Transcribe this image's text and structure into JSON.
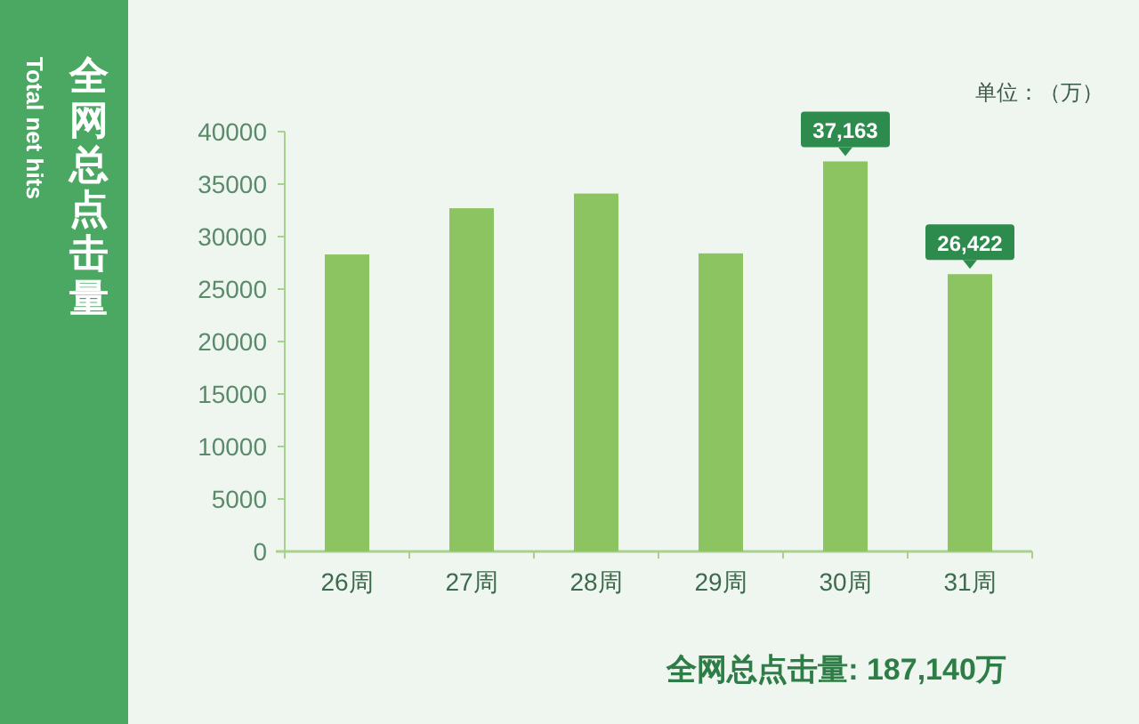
{
  "chart_data": {
    "type": "bar",
    "title": "全网总点击量",
    "subtitle": "Total net hits",
    "categories": [
      "26周",
      "27周",
      "28周",
      "29周",
      "30周",
      "31周"
    ],
    "values": [
      28300,
      32700,
      34100,
      28400,
      37163,
      26422
    ],
    "value_labels": [
      null,
      null,
      null,
      null,
      "37,163",
      "26,422"
    ],
    "color": "#8cc462",
    "ylim": [
      0,
      40000
    ],
    "yticks": [
      0,
      5000,
      10000,
      15000,
      20000,
      25000,
      30000,
      35000,
      40000
    ],
    "grid": false,
    "annotations": [
      "单位：（万）",
      "全网总点击量: 187,140万"
    ]
  }
}
